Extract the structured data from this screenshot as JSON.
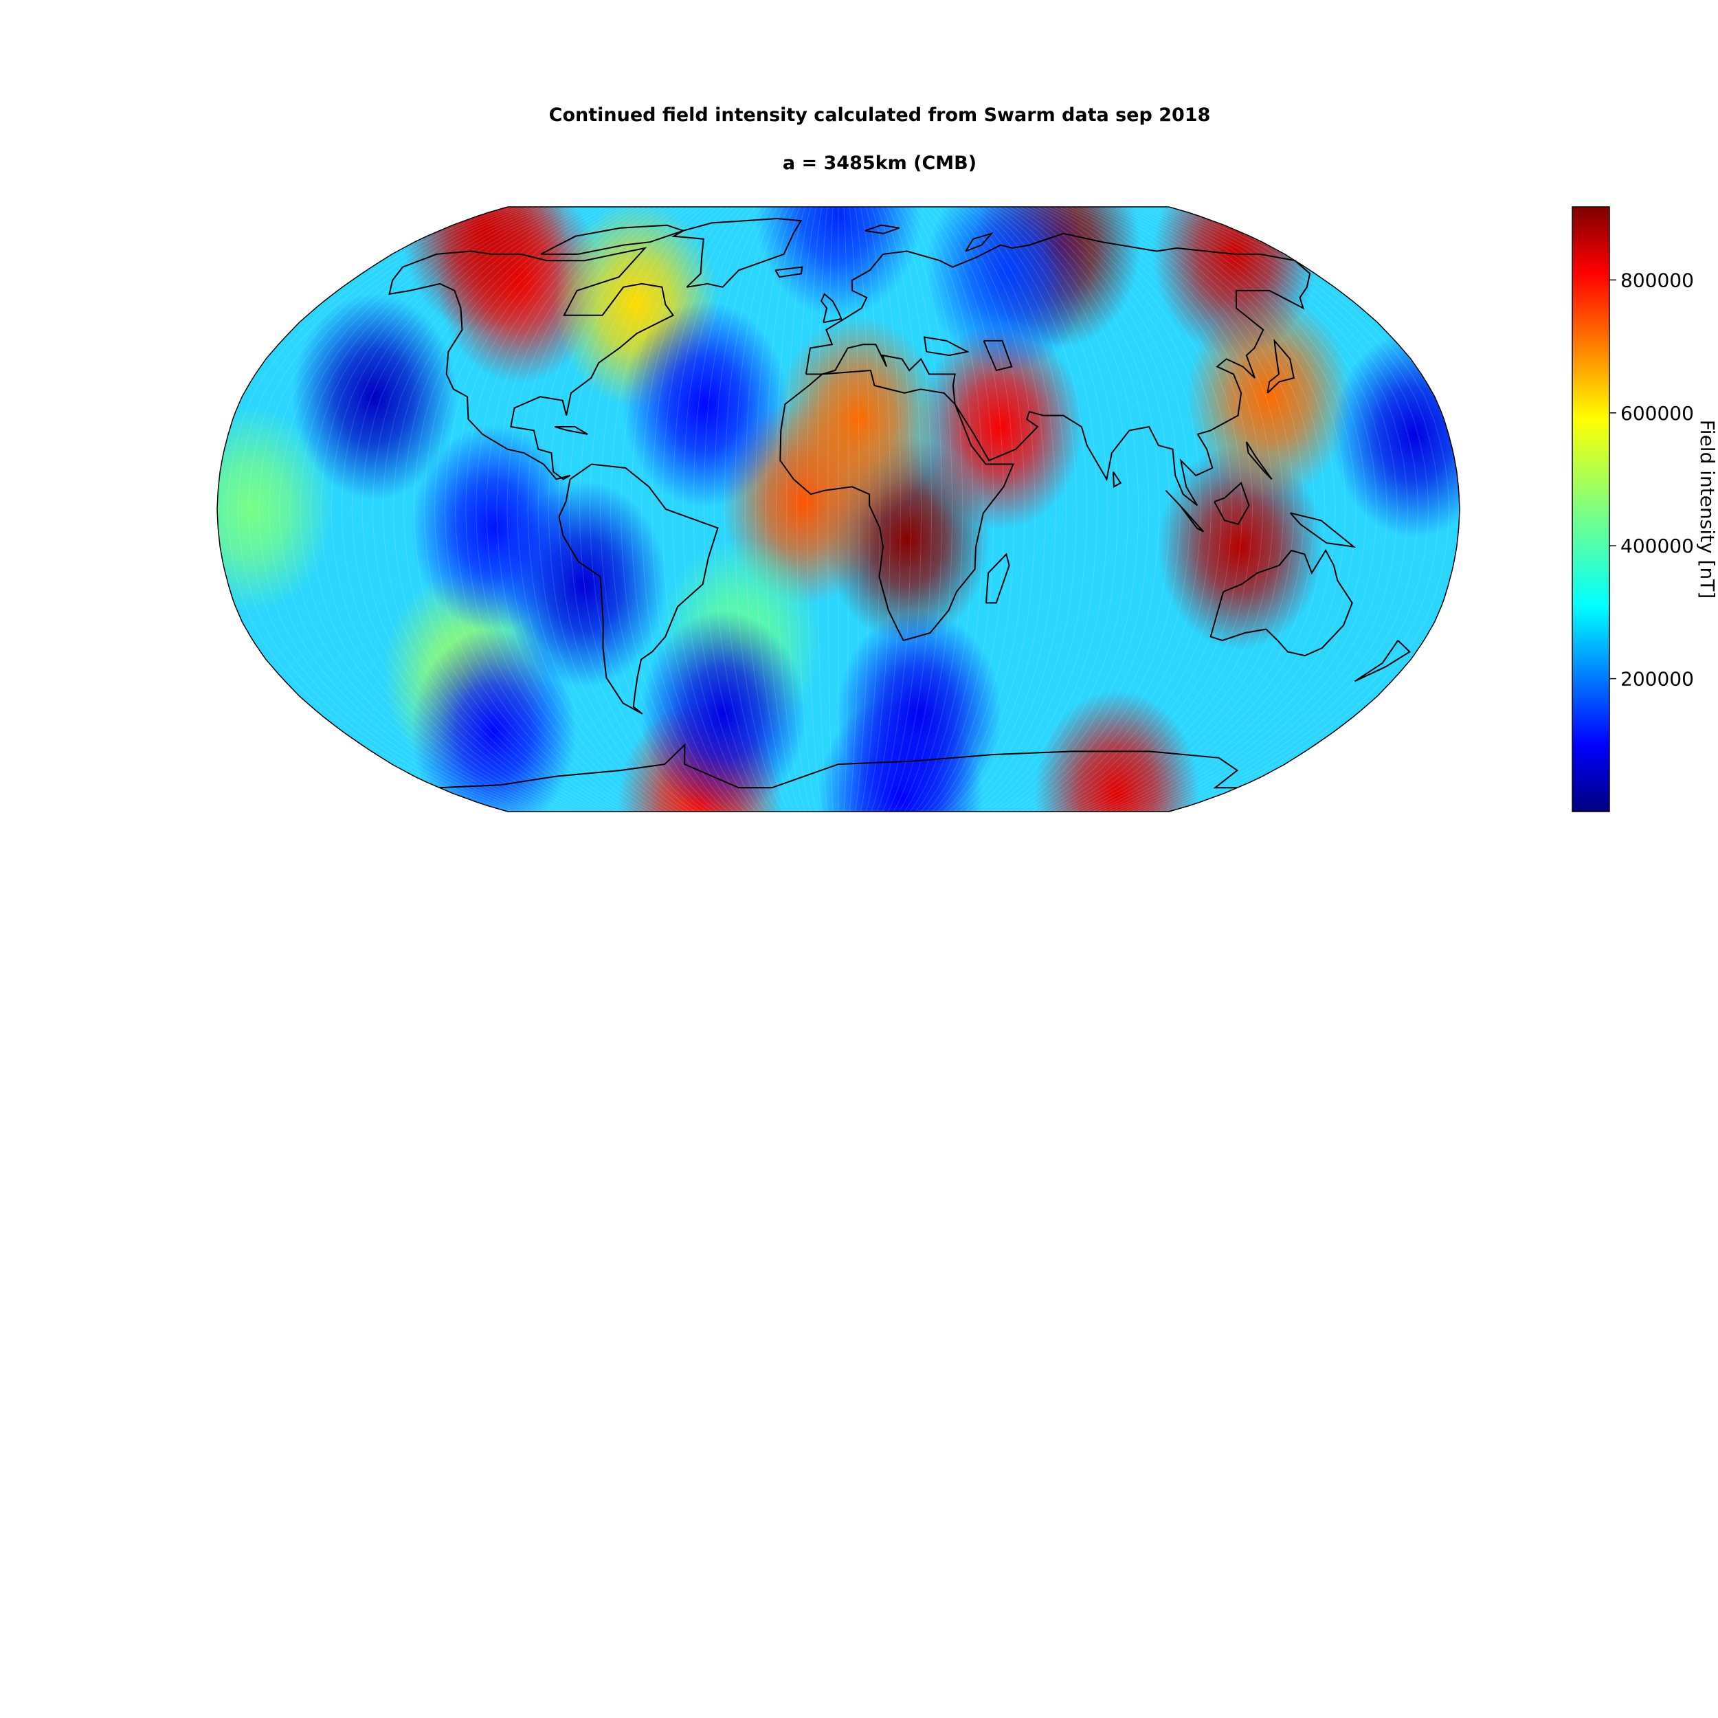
{
  "title": "Continued field intensity calculated from Swarm data sep 2018",
  "subtitle": "a = 3485km (CMB)",
  "colorbar": {
    "label": "Field intensity [nT]",
    "range": [
      0,
      910000
    ],
    "ticks": [
      {
        "value": 200000,
        "label": "200000"
      },
      {
        "value": 400000,
        "label": "400000"
      },
      {
        "value": 600000,
        "label": "600000"
      },
      {
        "value": 800000,
        "label": "800000"
      }
    ],
    "colormap": "jet",
    "colormap_stops": [
      "#00007f",
      "#0000ff",
      "#007fff",
      "#00ffff",
      "#7fff7f",
      "#ffff00",
      "#ff7f00",
      "#ff0000",
      "#7f0000"
    ]
  },
  "map": {
    "projection": "Robinson",
    "background_color": "#2bd6ff",
    "coastline_color": "#000000",
    "field_anomalies": [
      {
        "lon": 20,
        "lat": -8,
        "value": 900000
      },
      {
        "lon": 117,
        "lat": -10,
        "value": 860000
      },
      {
        "lon": -10,
        "lat": 2,
        "value": 720000
      },
      {
        "lon": 48,
        "lat": 22,
        "value": 800000
      },
      {
        "lon": 6,
        "lat": 24,
        "value": 700000
      },
      {
        "lon": 130,
        "lat": 30,
        "value": 700000
      },
      {
        "lon": -118,
        "lat": 62,
        "value": 790000
      },
      {
        "lon": 92,
        "lat": 73,
        "value": 900000
      },
      {
        "lon": 160,
        "lat": 70,
        "value": 840000
      },
      {
        "lon": -160,
        "lat": 78,
        "value": 840000
      },
      {
        "lon": 130,
        "lat": -80,
        "value": 820000
      },
      {
        "lon": -70,
        "lat": -85,
        "value": 780000
      },
      {
        "lon": -120,
        "lat": -44,
        "value": 480000
      },
      {
        "lon": -30,
        "lat": -35,
        "value": 430000
      },
      {
        "lon": -70,
        "lat": 55,
        "value": 600000
      },
      {
        "lon": -170,
        "lat": 0,
        "value": 450000
      },
      {
        "lon": -140,
        "lat": 30,
        "value": 60000
      },
      {
        "lon": -75,
        "lat": -20,
        "value": 80000
      },
      {
        "lon": -40,
        "lat": 28,
        "value": 120000
      },
      {
        "lon": -100,
        "lat": -5,
        "value": 130000
      },
      {
        "lon": 170,
        "lat": 20,
        "value": 90000
      },
      {
        "lon": -125,
        "lat": -60,
        "value": 120000
      },
      {
        "lon": -40,
        "lat": -55,
        "value": 90000
      },
      {
        "lon": 28,
        "lat": -55,
        "value": 100000
      },
      {
        "lon": 65,
        "lat": 65,
        "value": 170000
      },
      {
        "lon": 0,
        "lat": 85,
        "value": 150000
      },
      {
        "lon": 30,
        "lat": -82,
        "value": 110000
      }
    ]
  }
}
